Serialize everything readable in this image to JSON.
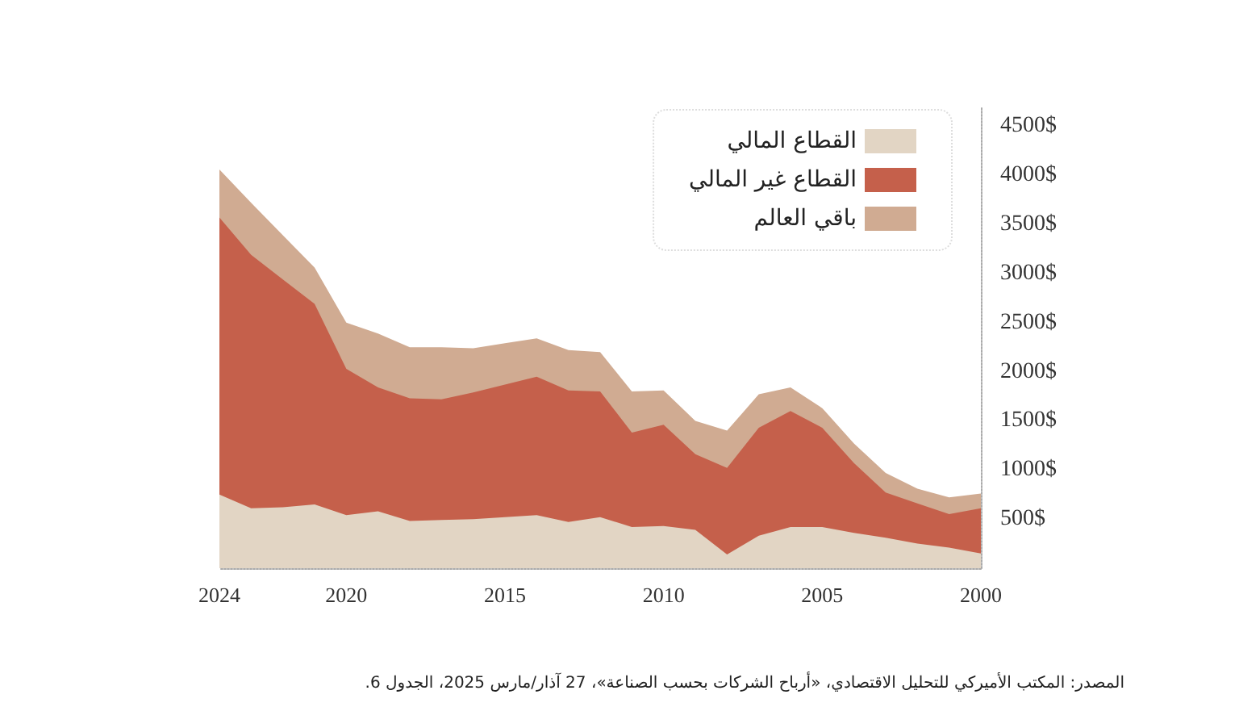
{
  "chart_data": {
    "type": "area",
    "stacked": true,
    "x": [
      2024,
      2023,
      2022,
      2021,
      2020,
      2019,
      2018,
      2017,
      2016,
      2015,
      2014,
      2013,
      2012,
      2011,
      2010,
      2009,
      2008,
      2007,
      2006,
      2005,
      2004,
      2003,
      2002,
      2001,
      2000
    ],
    "series": [
      {
        "name": "القطاع المالي",
        "color": "#e2d5c4",
        "values": [
          750,
          610,
          620,
          650,
          540,
          580,
          480,
          490,
          500,
          520,
          540,
          470,
          520,
          420,
          430,
          390,
          140,
          330,
          420,
          420,
          360,
          310,
          250,
          210,
          150
        ]
      },
      {
        "name": "القطاع غير المالي",
        "color": "#c5604b",
        "values": [
          2820,
          2580,
          2320,
          2040,
          1490,
          1260,
          1250,
          1230,
          1290,
          1350,
          1410,
          1340,
          1280,
          960,
          1030,
          770,
          880,
          1100,
          1180,
          1010,
          710,
          460,
          410,
          340,
          460
        ]
      },
      {
        "name": "باقي العالم",
        "color": "#d0ab92",
        "values": [
          490,
          530,
          450,
          370,
          470,
          550,
          520,
          530,
          450,
          420,
          390,
          410,
          400,
          420,
          350,
          340,
          380,
          340,
          240,
          200,
          200,
          200,
          150,
          170,
          150
        ]
      }
    ],
    "xlim": [
      2024,
      2000
    ],
    "xticks": [
      2024,
      2020,
      2015,
      2010,
      2005,
      2000
    ],
    "ylim": [
      0,
      4700
    ],
    "yticks": [
      {
        "value": 500,
        "label": "500$"
      },
      {
        "value": 1000,
        "label": "1000$"
      },
      {
        "value": 1500,
        "label": "1500$"
      },
      {
        "value": 2000,
        "label": "2000$"
      },
      {
        "value": 2500,
        "label": "2500$"
      },
      {
        "value": 3000,
        "label": "3000$"
      },
      {
        "value": 3500,
        "label": "3500$"
      },
      {
        "value": 4000,
        "label": "4000$"
      },
      {
        "value": 4500,
        "label": "4500$"
      }
    ],
    "legend": "top right",
    "annotations": [
      "المصدر: المكتب الأميركي للتحليل الاقتصادي، «أرباح الشركات بحسب الصناعة»، 27 آذار/مارس 2025، الجدول 6."
    ]
  }
}
